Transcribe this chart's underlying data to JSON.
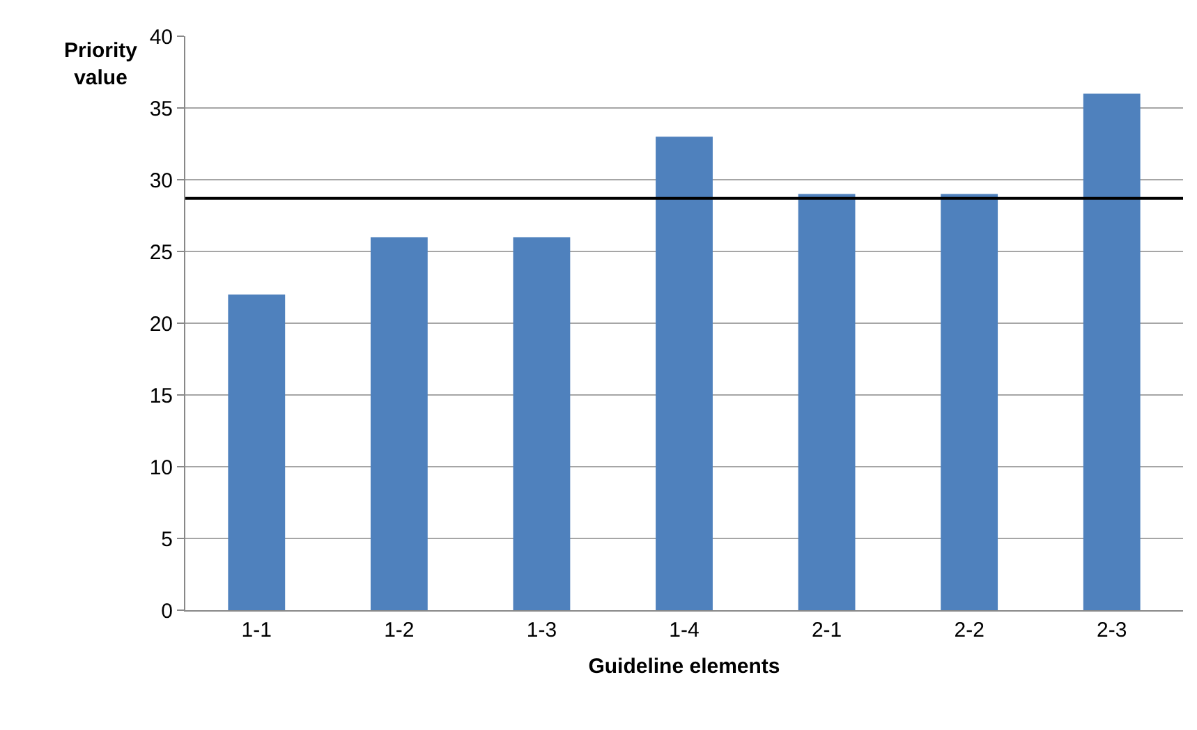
{
  "chart_data": {
    "type": "bar",
    "xlabel": "Guideline elements",
    "ylabel": "Priority value",
    "categories": [
      "1-1",
      "1-2",
      "1-3",
      "1-4",
      "2-1",
      "2-2",
      "2-3"
    ],
    "values": [
      22,
      26,
      26,
      33,
      29,
      29,
      36
    ],
    "color": "#4f81bd",
    "ylim": [
      0,
      40
    ],
    "yticks": [
      0,
      5,
      10,
      15,
      20,
      25,
      30,
      35,
      40
    ],
    "grid": "y",
    "ref_lines": [
      {
        "axis": "y",
        "value": 28.7,
        "color": "#000000"
      }
    ]
  }
}
